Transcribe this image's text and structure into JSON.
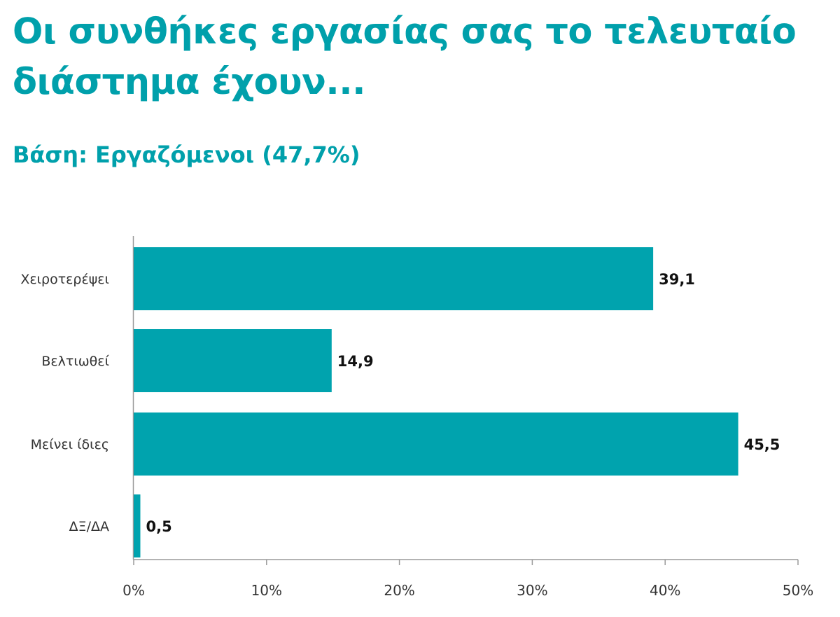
{
  "title": "Οι συνθήκες εργασίας σας το τελευταίο\nδιάστημα έχουν...",
  "subtitle": "Βάση: Εργαζόμενοι (47,7%)",
  "colors": {
    "accent": "#00A0AB",
    "bar": "#00A3AE",
    "axis": "#9a9a9a",
    "text": "#111111",
    "label": "#333333"
  },
  "chart_data": {
    "type": "bar",
    "orientation": "horizontal",
    "title": "",
    "xlabel": "",
    "ylabel": "",
    "categories": [
      "Χειροτερέψει",
      "Βελτιωθεί",
      "Μείνει ίδιες",
      "ΔΞ/ΔΑ"
    ],
    "values": [
      39.1,
      14.9,
      45.5,
      0.5
    ],
    "value_labels": [
      "39,1",
      "14,9",
      "45,5",
      "0,5"
    ],
    "xlim": [
      0,
      50
    ],
    "x_ticks": [
      0,
      10,
      20,
      30,
      40,
      50
    ],
    "x_tick_labels": [
      "0%",
      "10%",
      "20%",
      "30%",
      "40%",
      "50%"
    ],
    "grid": false,
    "legend": "none"
  }
}
